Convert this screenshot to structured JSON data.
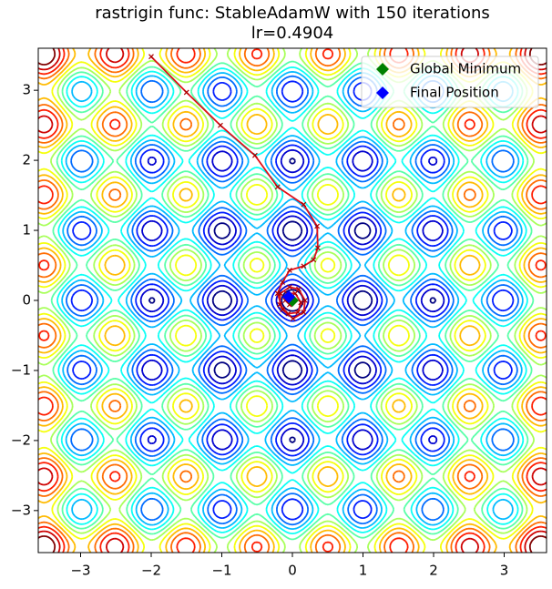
{
  "chart_data": {
    "type": "contour",
    "title": "rastrigin func: StableAdamW with 150 iterations",
    "subtitle": "lr=0.4904",
    "xlim": [
      -3.6,
      3.6
    ],
    "ylim": [
      -3.6,
      3.6
    ],
    "xticks": [
      {
        "value": -3,
        "label": "−3"
      },
      {
        "value": -2,
        "label": "−2"
      },
      {
        "value": -1,
        "label": "−1"
      },
      0,
      1,
      2,
      3
    ],
    "yticks": [
      {
        "value": -3,
        "label": "−3"
      },
      {
        "value": -2,
        "label": "−2"
      },
      {
        "value": -1,
        "label": "−1"
      },
      0,
      1,
      2,
      3
    ],
    "path": {
      "color": "#e0101a",
      "x": [
        -2.0,
        -1.5,
        -1.02,
        -0.53,
        -0.21,
        0.16,
        0.35,
        0.36,
        0.3,
        0.16,
        -0.04,
        -0.14,
        -0.21,
        -0.14,
        0.01,
        0.16,
        0.18,
        0.09,
        -0.04,
        -0.17,
        -0.18,
        -0.06,
        0.08,
        0.12,
        0.04,
        -0.08,
        -0.1,
        -0.04,
        -0.05
      ],
      "y": [
        3.48,
        2.97,
        2.5,
        2.07,
        1.62,
        1.37,
        1.06,
        0.75,
        0.58,
        0.49,
        0.43,
        0.26,
        0.1,
        -0.13,
        -0.26,
        -0.17,
        0.0,
        0.16,
        0.19,
        0.1,
        -0.06,
        -0.19,
        -0.17,
        -0.03,
        0.1,
        0.1,
        0.0,
        -0.06,
        0.05
      ]
    },
    "points": [
      {
        "name": "Global Minimum",
        "color": "green",
        "x": 0,
        "y": 0
      },
      {
        "name": "Final Position",
        "color": "blue",
        "x": -0.05,
        "y": 0.05
      }
    ],
    "legend": "upper right"
  }
}
